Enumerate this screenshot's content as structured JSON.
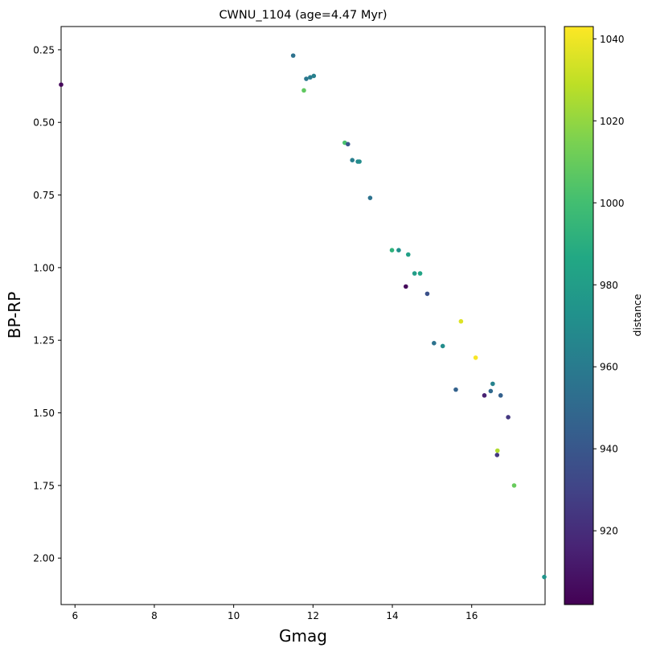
{
  "chart_data": {
    "type": "scatter",
    "title": "CWNU_1104 (age=4.47 Myr)",
    "xlabel": "Gmag",
    "ylabel": "BP-RP",
    "xlim": [
      5.65,
      17.85
    ],
    "ylim": [
      2.16,
      0.17
    ],
    "y_inverted": true,
    "grid": false,
    "legend": "none",
    "xticks": [
      6,
      8,
      10,
      12,
      14,
      16
    ],
    "yticks": [
      0.25,
      0.5,
      0.75,
      1.0,
      1.25,
      1.5,
      1.75,
      2.0
    ],
    "colorbar": {
      "label": "distance",
      "colormap": "viridis",
      "range": [
        902,
        1043
      ],
      "ticks": [
        920,
        940,
        960,
        980,
        1000,
        1020,
        1040
      ]
    },
    "points": [
      {
        "x": 5.65,
        "y": 0.37,
        "c": 905
      },
      {
        "x": 11.5,
        "y": 0.27,
        "c": 955
      },
      {
        "x": 11.83,
        "y": 0.35,
        "c": 958
      },
      {
        "x": 11.93,
        "y": 0.345,
        "c": 960
      },
      {
        "x": 12.02,
        "y": 0.34,
        "c": 963
      },
      {
        "x": 11.77,
        "y": 0.39,
        "c": 1008
      },
      {
        "x": 12.8,
        "y": 0.57,
        "c": 1002
      },
      {
        "x": 12.88,
        "y": 0.575,
        "c": 940
      },
      {
        "x": 12.99,
        "y": 0.63,
        "c": 962
      },
      {
        "x": 13.13,
        "y": 0.635,
        "c": 968
      },
      {
        "x": 13.17,
        "y": 0.635,
        "c": 970
      },
      {
        "x": 13.44,
        "y": 0.76,
        "c": 955
      },
      {
        "x": 13.99,
        "y": 0.94,
        "c": 992
      },
      {
        "x": 14.16,
        "y": 0.94,
        "c": 972
      },
      {
        "x": 14.4,
        "y": 0.955,
        "c": 982
      },
      {
        "x": 14.56,
        "y": 1.02,
        "c": 980
      },
      {
        "x": 14.7,
        "y": 1.02,
        "c": 984
      },
      {
        "x": 14.34,
        "y": 1.065,
        "c": 905
      },
      {
        "x": 14.88,
        "y": 1.09,
        "c": 937
      },
      {
        "x": 15.73,
        "y": 1.185,
        "c": 1036
      },
      {
        "x": 15.05,
        "y": 1.26,
        "c": 955
      },
      {
        "x": 15.27,
        "y": 1.27,
        "c": 970
      },
      {
        "x": 16.1,
        "y": 1.31,
        "c": 1042
      },
      {
        "x": 16.53,
        "y": 1.4,
        "c": 964
      },
      {
        "x": 16.48,
        "y": 1.425,
        "c": 950
      },
      {
        "x": 16.73,
        "y": 1.44,
        "c": 945
      },
      {
        "x": 15.6,
        "y": 1.42,
        "c": 946
      },
      {
        "x": 16.32,
        "y": 1.44,
        "c": 915
      },
      {
        "x": 16.92,
        "y": 1.515,
        "c": 925
      },
      {
        "x": 16.65,
        "y": 1.63,
        "c": 1026
      },
      {
        "x": 16.64,
        "y": 1.645,
        "c": 925
      },
      {
        "x": 17.07,
        "y": 1.75,
        "c": 1010
      },
      {
        "x": 17.83,
        "y": 2.065,
        "c": 975
      }
    ]
  }
}
